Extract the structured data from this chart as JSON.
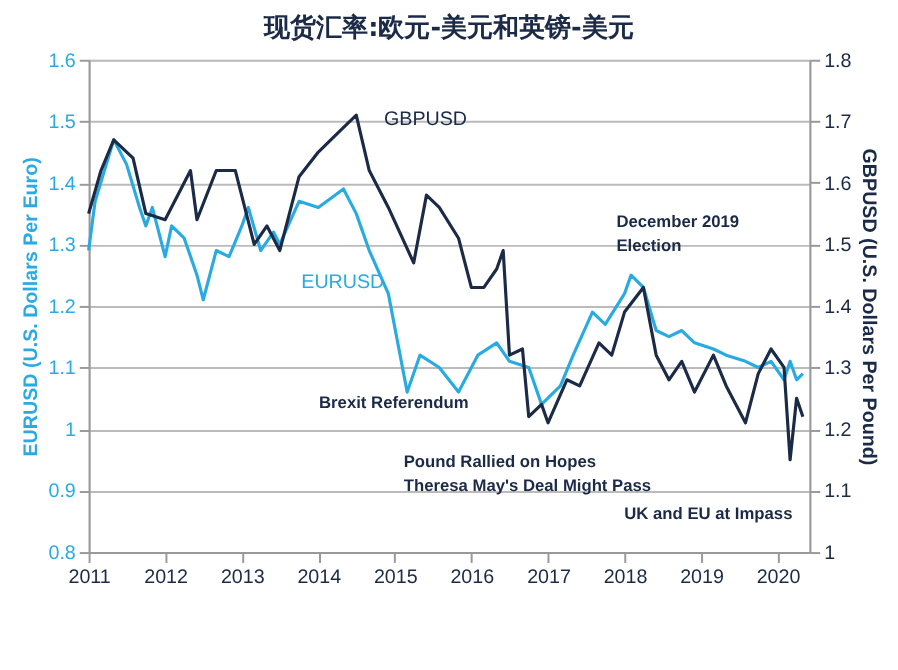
{
  "chart_data": {
    "type": "line",
    "title": "现货汇率:欧元-美元和英镑-美元",
    "ylabel": "EURUSD (U.S. Dollars Per Euro)",
    "y2label": "GBPUSD (U.S. Dollars Per Pound)",
    "xlim": [
      "2011-01",
      "2020-06"
    ],
    "xticks": [
      "2011",
      "2012",
      "2013",
      "2014",
      "2015",
      "2016",
      "2017",
      "2018",
      "2019",
      "2020"
    ],
    "ylim": [
      0.8,
      1.6
    ],
    "yticks": [
      0.8,
      0.9,
      1,
      1.1,
      1.2,
      1.3,
      1.4,
      1.5,
      1.6
    ],
    "y2lim": [
      1,
      1.8
    ],
    "y2ticks": [
      1,
      1.1,
      1.2,
      1.3,
      1.4,
      1.5,
      1.6,
      1.7,
      1.8
    ],
    "grid": "y",
    "marker": "none",
    "line_style": "solid",
    "annotations": [
      "Brexit Referendum",
      "Pound Rallied on Hopes\nTheresa May's Deal Might Pass",
      "December 2019\nElection",
      "UK and EU at Impass"
    ],
    "series": [
      {
        "name": "EURUSD",
        "color": "#29abe2",
        "x": [
          "2011-01",
          "2011-02",
          "2011-05",
          "2011-07",
          "2011-09",
          "2011-10",
          "2011-11",
          "2012-01",
          "2012-02",
          "2012-04",
          "2012-06",
          "2012-07",
          "2012-09",
          "2012-11",
          "2013-01",
          "2013-02",
          "2013-04",
          "2013-06",
          "2013-07",
          "2013-10",
          "2014-01",
          "2014-05",
          "2014-07",
          "2014-09",
          "2014-12",
          "2015-03",
          "2015-05",
          "2015-08",
          "2015-11",
          "2016-02",
          "2016-05",
          "2016-07",
          "2016-10",
          "2016-12",
          "2017-03",
          "2017-05",
          "2017-08",
          "2017-10",
          "2018-01",
          "2018-02",
          "2018-04",
          "2018-06",
          "2018-08",
          "2018-10",
          "2018-12",
          "2019-03",
          "2019-05",
          "2019-08",
          "2019-10",
          "2019-12",
          "2020-02",
          "2020-03",
          "2020-04",
          "2020-05"
        ],
        "values": [
          1.29,
          1.37,
          1.47,
          1.43,
          1.36,
          1.33,
          1.36,
          1.28,
          1.33,
          1.31,
          1.25,
          1.21,
          1.29,
          1.28,
          1.33,
          1.36,
          1.29,
          1.32,
          1.3,
          1.37,
          1.36,
          1.39,
          1.35,
          1.29,
          1.22,
          1.06,
          1.12,
          1.1,
          1.06,
          1.12,
          1.14,
          1.11,
          1.1,
          1.04,
          1.07,
          1.12,
          1.19,
          1.17,
          1.22,
          1.25,
          1.23,
          1.16,
          1.15,
          1.16,
          1.14,
          1.13,
          1.12,
          1.11,
          1.1,
          1.11,
          1.08,
          1.11,
          1.08,
          1.09
        ]
      },
      {
        "name": "GBPUSD",
        "color": "#1b2a47",
        "axis": "y2",
        "x": [
          "2011-01",
          "2011-03",
          "2011-05",
          "2011-08",
          "2011-10",
          "2012-01",
          "2012-05",
          "2012-06",
          "2012-09",
          "2012-12",
          "2013-03",
          "2013-05",
          "2013-07",
          "2013-10",
          "2014-01",
          "2014-04",
          "2014-07",
          "2014-09",
          "2014-12",
          "2015-04",
          "2015-06",
          "2015-08",
          "2015-11",
          "2016-01",
          "2016-03",
          "2016-05",
          "2016-06",
          "2016-07",
          "2016-09",
          "2016-10",
          "2016-12",
          "2017-01",
          "2017-04",
          "2017-06",
          "2017-09",
          "2017-11",
          "2018-01",
          "2018-04",
          "2018-06",
          "2018-08",
          "2018-10",
          "2018-12",
          "2019-03",
          "2019-05",
          "2019-08",
          "2019-10",
          "2019-12",
          "2020-02",
          "2020-03",
          "2020-04",
          "2020-05"
        ],
        "values": [
          1.55,
          1.62,
          1.67,
          1.64,
          1.55,
          1.54,
          1.62,
          1.54,
          1.62,
          1.62,
          1.5,
          1.53,
          1.49,
          1.61,
          1.65,
          1.68,
          1.71,
          1.62,
          1.56,
          1.47,
          1.58,
          1.56,
          1.51,
          1.43,
          1.43,
          1.46,
          1.49,
          1.32,
          1.33,
          1.22,
          1.24,
          1.21,
          1.28,
          1.27,
          1.34,
          1.32,
          1.39,
          1.43,
          1.32,
          1.28,
          1.31,
          1.26,
          1.32,
          1.27,
          1.21,
          1.29,
          1.33,
          1.3,
          1.15,
          1.25,
          1.22
        ]
      }
    ]
  }
}
